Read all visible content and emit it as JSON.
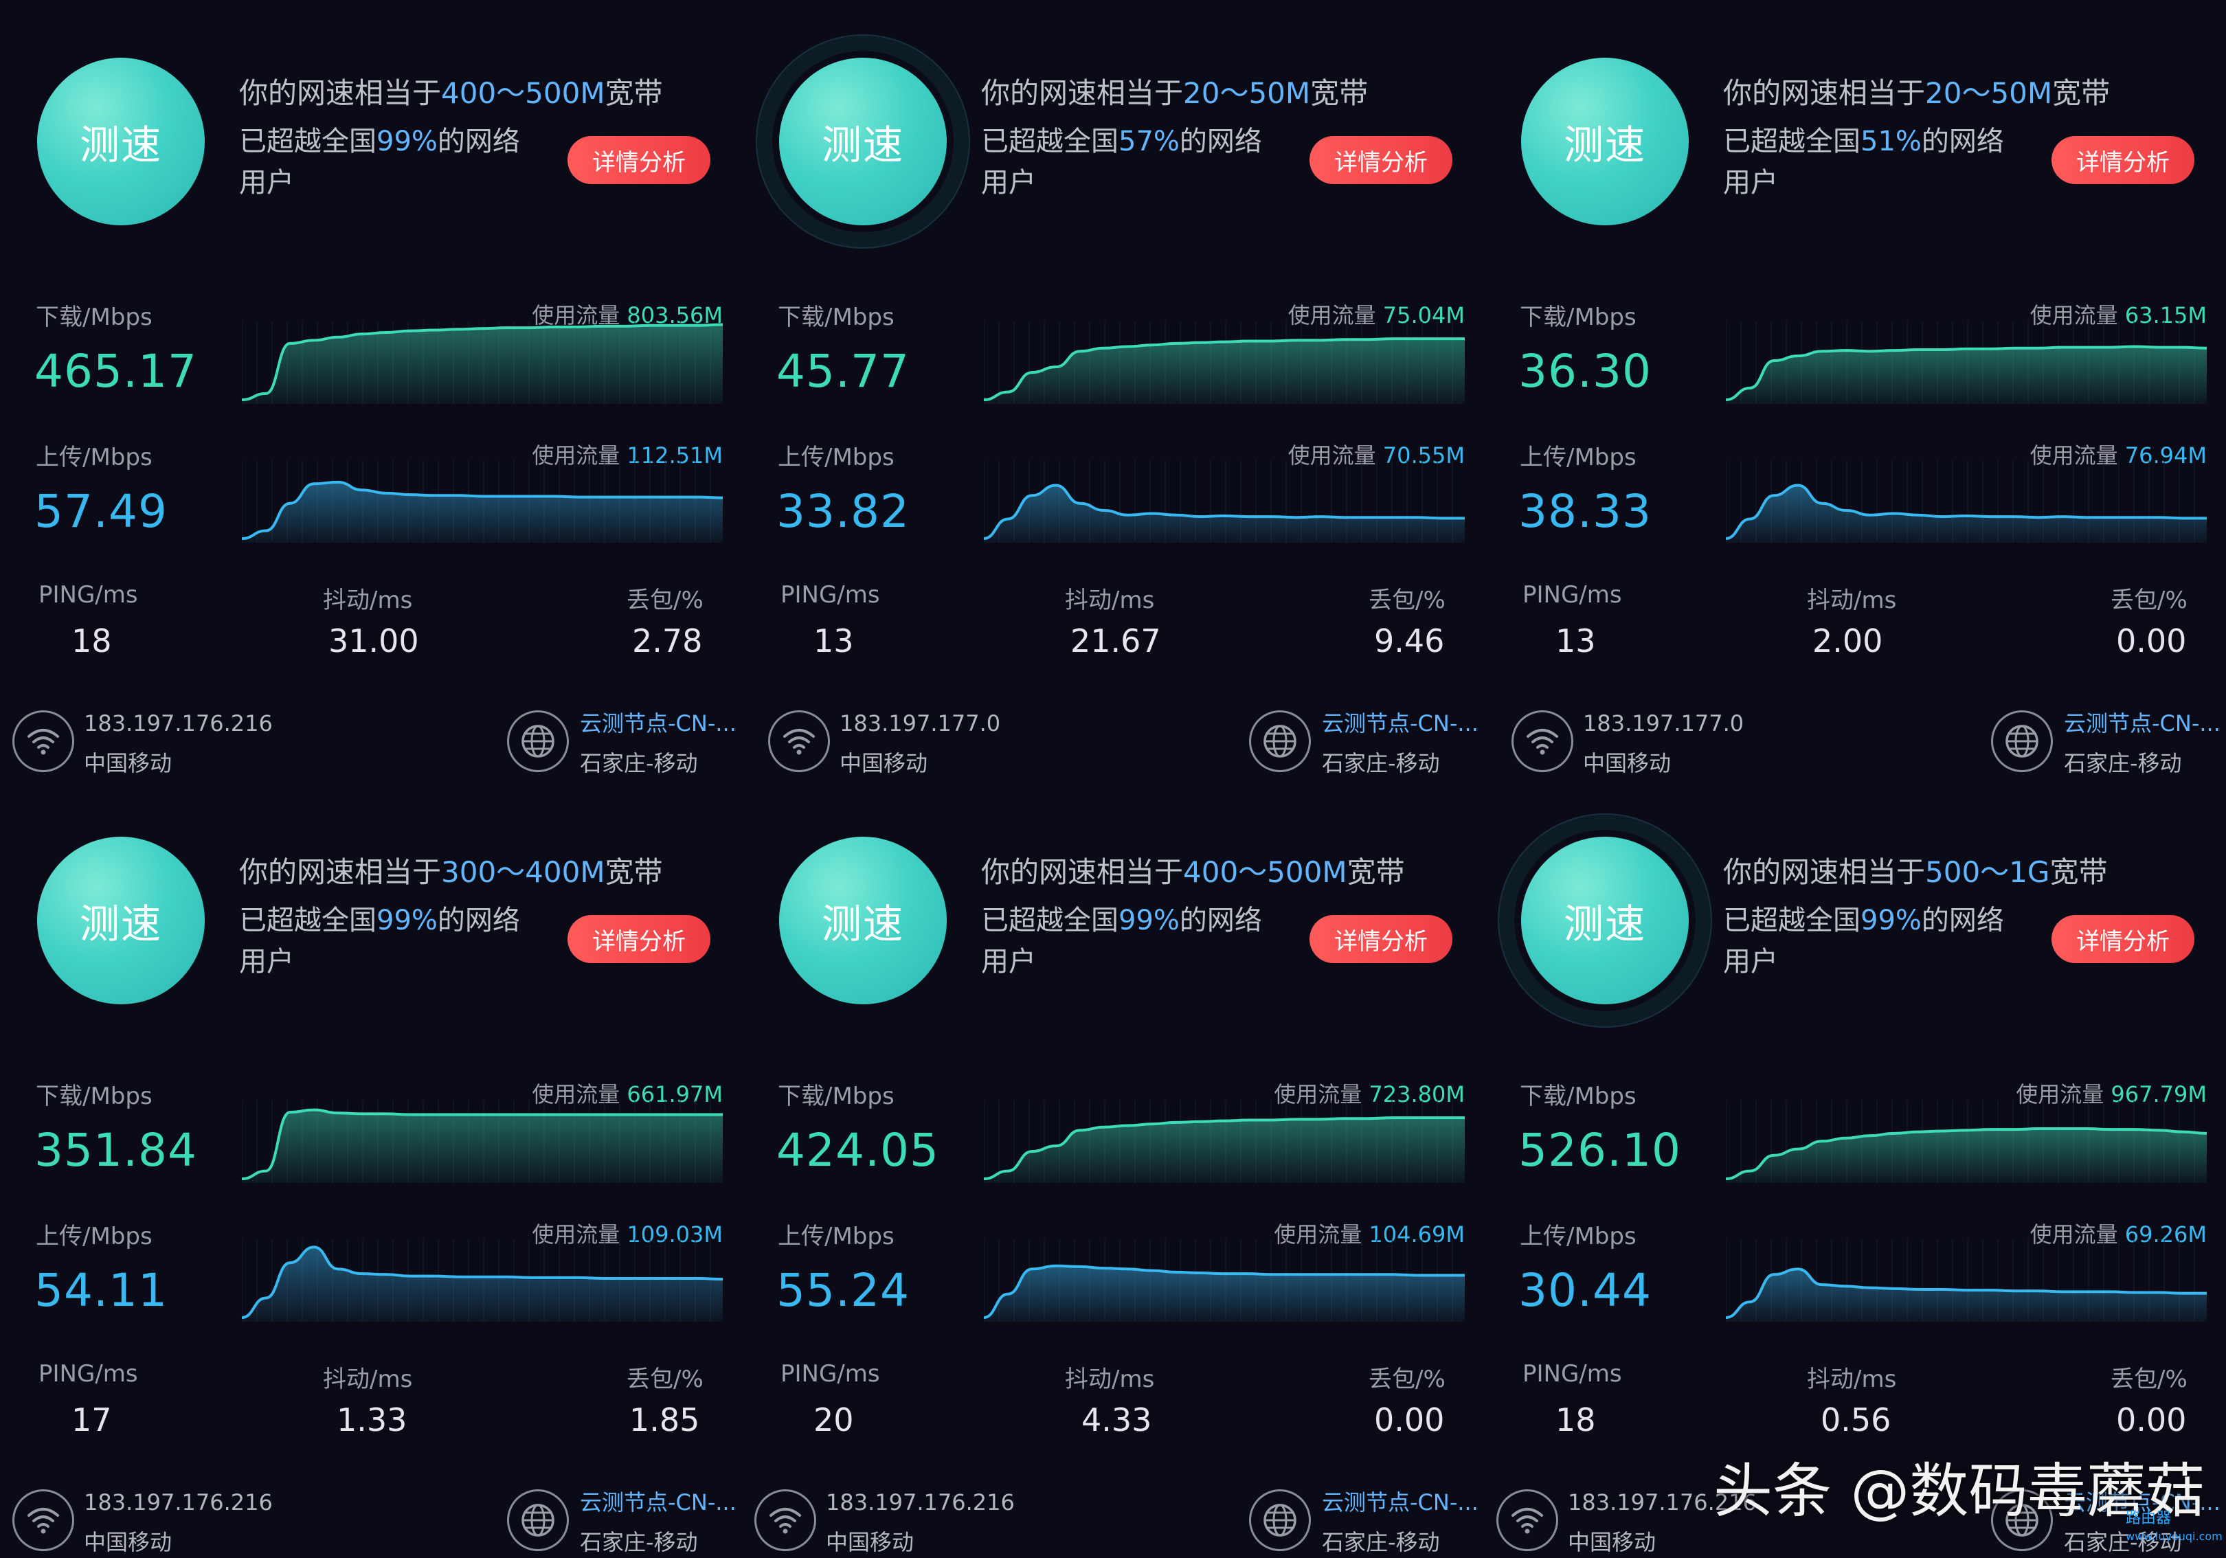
{
  "labels": {
    "speed_test_button": "测速",
    "headline_prefix": "你的网速相当于",
    "headline_suffix": "宽带",
    "rank_prefix": "已超越全国",
    "rank_suffix": "的网络用户",
    "detail_button": "详情分析",
    "download_unit": "下载/Mbps",
    "upload_unit": "上传/Mbps",
    "usage_prefix": "使用流量",
    "ping": "PING/ms",
    "jitter": "抖动/ms",
    "loss": "丢包/%",
    "carrier": "中国移动",
    "node_name": "云测节点-CN-...",
    "node_location": "石家庄-移动"
  },
  "colors": {
    "background": "#0b0b17",
    "download_accent": "#3ddcb8",
    "upload_accent": "#39b9f2",
    "highlight_text": "#62b6ff",
    "button_red": "#ee3d44",
    "circle_teal": "#43d2c6"
  },
  "icons": {
    "carrier": "wifi-icon",
    "node": "globe-icon"
  },
  "results": [
    {
      "bandwidth": "400～500M",
      "rank": "99%",
      "download": "465.17",
      "download_usage": "803.56M",
      "upload": "57.49",
      "upload_usage": "112.51M",
      "ping": "18",
      "jitter": "31.00",
      "loss": "2.78",
      "ip": "183.197.176.216"
    },
    {
      "bandwidth": "20～50M",
      "rank": "57%",
      "download": "45.77",
      "download_usage": "75.04M",
      "upload": "33.82",
      "upload_usage": "70.55M",
      "ping": "13",
      "jitter": "21.67",
      "loss": "9.46",
      "ip": "183.197.177.0"
    },
    {
      "bandwidth": "20～50M",
      "rank": "51%",
      "download": "36.30",
      "download_usage": "63.15M",
      "upload": "38.33",
      "upload_usage": "76.94M",
      "ping": "13",
      "jitter": "2.00",
      "loss": "0.00",
      "ip": "183.197.177.0"
    },
    {
      "bandwidth": "300～400M",
      "rank": "99%",
      "download": "351.84",
      "download_usage": "661.97M",
      "upload": "54.11",
      "upload_usage": "109.03M",
      "ping": "17",
      "jitter": "1.33",
      "loss": "1.85",
      "ip": "183.197.176.216"
    },
    {
      "bandwidth": "400～500M",
      "rank": "99%",
      "download": "424.05",
      "download_usage": "723.80M",
      "upload": "55.24",
      "upload_usage": "104.69M",
      "ping": "20",
      "jitter": "4.33",
      "loss": "0.00",
      "ip": "183.197.176.216"
    },
    {
      "bandwidth": "500～1G",
      "rank": "99%",
      "download": "526.10",
      "download_usage": "967.79M",
      "upload": "30.44",
      "upload_usage": "69.26M",
      "ping": "18",
      "jitter": "0.56",
      "loss": "0.00",
      "ip": "183.197.176.216"
    }
  ],
  "watermark": "头条 @数码毒蘑菇",
  "router_logo": {
    "name": "路由器",
    "url": "www.luyouqi.com"
  }
}
